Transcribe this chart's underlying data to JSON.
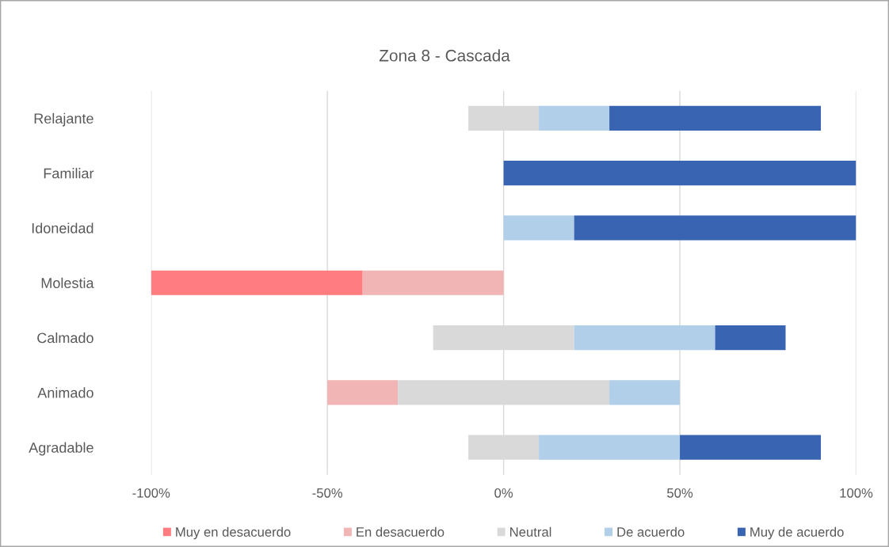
{
  "chart_data": {
    "type": "bar",
    "orientation": "horizontal",
    "title": "Zona 8 - Cascada",
    "categories": [
      "Relajante",
      "Familiar",
      "Idoneidad",
      "Molestia",
      "Calmado",
      "Animado",
      "Agradable"
    ],
    "series": [
      {
        "name": "Muy en desacuerdo",
        "color": "#ff7c80",
        "values": [
          null,
          null,
          null,
          60,
          null,
          null,
          null
        ],
        "base": [
          null,
          null,
          null,
          -100,
          null,
          null,
          null
        ]
      },
      {
        "name": "En desacuerdo",
        "color": "#f1b5b5",
        "values": [
          null,
          null,
          null,
          40,
          null,
          20,
          null
        ],
        "base": [
          null,
          null,
          null,
          -40,
          null,
          -50,
          null
        ]
      },
      {
        "name": "Neutral",
        "color": "#d9d9d9",
        "values": [
          20,
          null,
          null,
          null,
          40,
          60,
          20
        ],
        "base": [
          -10,
          null,
          null,
          null,
          -20,
          -30,
          -10
        ]
      },
      {
        "name": "De acuerdo",
        "color": "#b1cfe9",
        "values": [
          20,
          null,
          20,
          null,
          40,
          20,
          40
        ],
        "base": [
          10,
          null,
          0,
          null,
          20,
          30,
          10
        ]
      },
      {
        "name": "Muy de acuerdo",
        "color": "#3864b1",
        "values": [
          60,
          100,
          80,
          null,
          20,
          null,
          40
        ],
        "base": [
          30,
          0,
          20,
          null,
          60,
          null,
          50
        ]
      }
    ],
    "xlim": [
      -100,
      100
    ],
    "xticks": [
      {
        "value": -100,
        "label": "-100%"
      },
      {
        "value": -50,
        "label": "-50%"
      },
      {
        "value": 0,
        "label": "0%"
      },
      {
        "value": 50,
        "label": "50%"
      },
      {
        "value": 100,
        "label": "100%"
      }
    ],
    "grid": "x",
    "legend": "bottom"
  }
}
